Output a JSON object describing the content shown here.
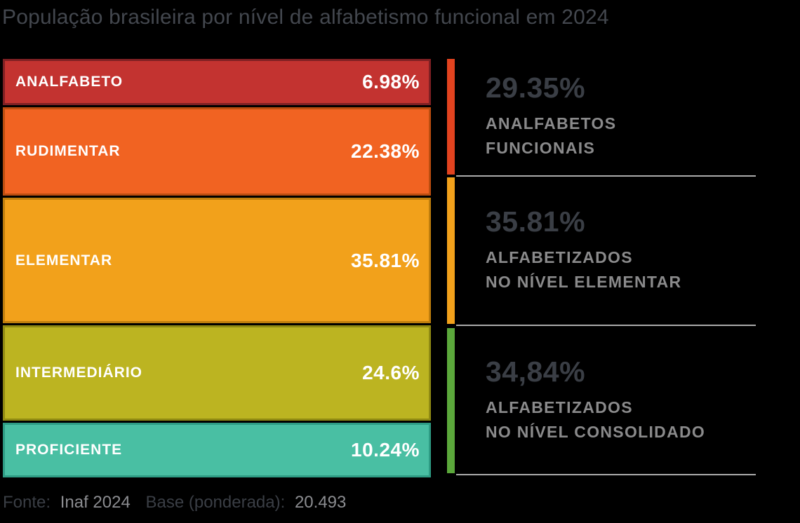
{
  "chart_data": {
    "type": "bar",
    "stacked": true,
    "orientation": "vertical",
    "unit": "%",
    "title": "População brasileira por nível de alfabetismo funcional em 2024",
    "categories": [
      "ANALFABETO",
      "RUDIMENTAR",
      "ELEMENTAR",
      "INTERMEDIÁRIO",
      "PROFICIENTE"
    ],
    "values": [
      6.98,
      22.38,
      35.81,
      24.6,
      10.24
    ],
    "segments": [
      {
        "label": "ANALFABETO",
        "value": 6.98,
        "display": "6.98%",
        "fill": "#c33330",
        "border": "#7f2023"
      },
      {
        "label": "RUDIMENTAR",
        "value": 22.38,
        "display": "22.38%",
        "fill": "#f16322",
        "border": "#bc4e10"
      },
      {
        "label": "ELEMENTAR",
        "value": 35.81,
        "display": "35.81%",
        "fill": "#f2a11b",
        "border": "#bf7e0d"
      },
      {
        "label": "INTERMEDIÁRIO",
        "value": 24.6,
        "display": "24.6%",
        "fill": "#bcb421",
        "border": "#908a13"
      },
      {
        "label": "PROFICIENTE",
        "value": 10.24,
        "display": "10.24%",
        "fill": "#49bfa3",
        "border": "#2e9c84"
      }
    ],
    "groups": [
      {
        "value": 29.35,
        "display": "29.35%",
        "label_lines": [
          "ANALFABETOS",
          "FUNCIONAIS"
        ],
        "strip_color": "#e2431f"
      },
      {
        "value": 35.81,
        "display": "35.81%",
        "label_lines": [
          "ALFABETIZADOS",
          "NO NÍVEL ELEMENTAR"
        ],
        "strip_color": "#f2a11b"
      },
      {
        "value": 34.84,
        "display": "34,84%",
        "label_lines": [
          "ALFABETIZADOS",
          "NO NÍVEL CONSOLIDADO"
        ],
        "strip_color": "#5ba83b"
      }
    ],
    "legend": false,
    "grid": false
  },
  "footer": {
    "source_label": "Fonte:",
    "source_value": "Inaf 2024",
    "base_label": "Base (ponderada):",
    "base_value": "20.493"
  }
}
